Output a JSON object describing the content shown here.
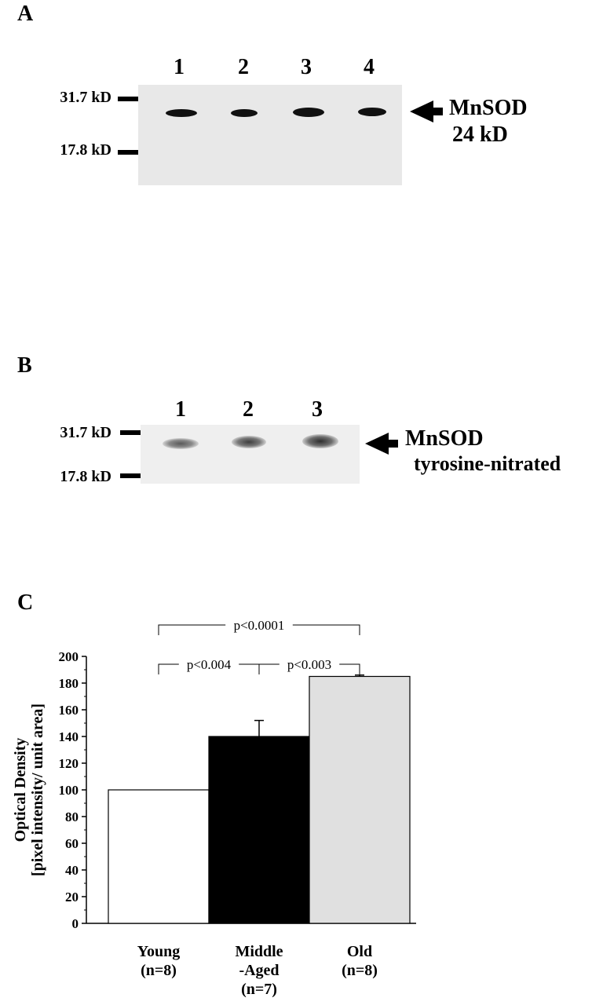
{
  "panel_a": {
    "letter": "A",
    "lanes": [
      "1",
      "2",
      "3",
      "4"
    ],
    "marker_high": "31.7 kD",
    "marker_low": "17.8 kD",
    "protein_label": "MnSOD",
    "protein_size": "24 kD"
  },
  "panel_b": {
    "letter": "B",
    "lanes": [
      "1",
      "2",
      "3"
    ],
    "marker_high": "31.7 kD",
    "marker_low": "17.8 kD",
    "protein_label": "MnSOD",
    "protein_note": "tyrosine-nitrated"
  },
  "panel_c": {
    "letter": "C"
  },
  "chart_data": {
    "type": "bar",
    "categories": [
      "Young\n(n=8)",
      "Middle\n-Aged\n(n=7)",
      "Old\n(n=8)"
    ],
    "category_lines": [
      [
        "Young",
        "(n=8)"
      ],
      [
        "Middle",
        "-Aged",
        "(n=7)"
      ],
      [
        "Old",
        "(n=8)"
      ]
    ],
    "values": [
      100,
      140,
      185
    ],
    "errors": [
      0,
      12,
      1
    ],
    "bar_colors": [
      "#ffffff",
      "#000000",
      "#e0e0e0"
    ],
    "ylabel": "Optical Density",
    "ylabel_sub": "[pixel intensity/ unit area]",
    "ylim": [
      0,
      200
    ],
    "yticks": [
      0,
      20,
      40,
      60,
      80,
      100,
      120,
      140,
      160,
      180,
      200
    ],
    "comparisons": [
      {
        "from": 0,
        "to": 2,
        "label": "p<0.0001",
        "level": 2
      },
      {
        "from": 0,
        "to": 1,
        "label": "p<0.004",
        "level": 1
      },
      {
        "from": 1,
        "to": 2,
        "label": "p<0.003",
        "level": 1
      }
    ],
    "grid": false
  }
}
